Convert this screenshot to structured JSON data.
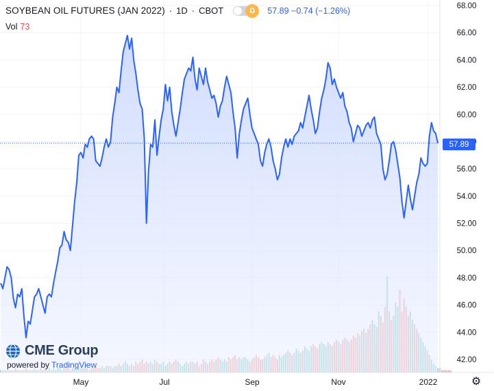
{
  "header": {
    "title": "SOYBEAN OIL FUTURES (JAN 2022)",
    "interval": "1D",
    "exchange": "CBOT",
    "separator": "·",
    "delay_badge": "D",
    "last_price": "57.89",
    "change": "−0.74",
    "change_pct": "(−1.26%)",
    "volume_label": "Vol",
    "volume_value": "73"
  },
  "price_badge": "57.89",
  "branding": {
    "logo_text": "CME Group",
    "powered_by": "powered by",
    "powered_brand": "TradingView"
  },
  "colors": {
    "line": "#2962ff",
    "area": "#dbe4ff",
    "vol_up": "#80cbc4",
    "vol_down": "#ef9a9a",
    "grid": "#f0f3fa"
  },
  "chart_data": {
    "type": "area",
    "title": "SOYBEAN OIL FUTURES (JAN 2022)",
    "x_ticks": [
      "May",
      "Jul",
      "Sep",
      "Nov",
      "2022"
    ],
    "y_ticks": [
      "68.00",
      "66.00",
      "64.00",
      "62.00",
      "60.00",
      "58.00",
      "56.00",
      "54.00",
      "52.00",
      "50.00",
      "48.00",
      "46.00",
      "44.00",
      "42.00"
    ],
    "ylim": [
      41.2,
      68.3
    ],
    "grid": true,
    "last_price": 57.89,
    "series": [
      {
        "values": [
          47.6,
          47.2,
          48.0,
          48.8,
          48.6,
          48.0,
          46.5,
          45.8,
          46.8,
          46.6,
          47.2,
          45.2,
          43.6,
          44.8,
          44.6,
          45.6,
          46.6,
          46.8,
          47.2,
          46.6,
          46.0,
          45.4,
          46.6,
          46.8,
          46.6,
          47.6,
          48.4,
          49.2,
          50.2,
          50.4,
          51.4,
          50.8,
          50.6,
          50.0,
          51.8,
          53.6,
          55.0,
          57.0,
          57.2,
          56.8,
          57.8,
          57.6,
          58.2,
          58.4,
          58.2,
          56.6,
          56.4,
          56.2,
          56.8,
          57.6,
          58.2,
          57.6,
          58.0,
          59.8,
          60.8,
          62.0,
          61.6,
          63.2,
          64.6,
          65.2,
          65.8,
          64.8,
          65.6,
          64.0,
          63.0,
          61.8,
          60.8,
          60.4,
          58.2,
          52.0,
          55.8,
          57.8,
          57.6,
          59.6,
          57.0,
          58.4,
          59.6,
          60.4,
          62.2,
          61.0,
          62.0,
          60.2,
          59.2,
          58.4,
          59.4,
          60.4,
          61.6,
          62.6,
          63.0,
          63.4,
          63.2,
          64.2,
          62.6,
          61.8,
          63.4,
          62.8,
          62.2,
          63.4,
          62.4,
          61.8,
          61.2,
          61.4,
          60.8,
          59.8,
          60.6,
          61.0,
          62.0,
          62.8,
          62.2,
          61.6,
          60.2,
          59.0,
          56.8,
          58.6,
          59.6,
          60.4,
          60.8,
          61.2,
          60.0,
          59.0,
          58.6,
          58.2,
          57.8,
          56.6,
          56.2,
          57.2,
          57.8,
          58.2,
          57.6,
          56.6,
          56.0,
          55.2,
          55.6,
          56.8,
          57.6,
          58.2,
          57.6,
          58.2,
          57.8,
          58.4,
          58.6,
          58.8,
          59.4,
          59.0,
          59.8,
          60.6,
          61.4,
          60.4,
          59.6,
          58.6,
          59.0,
          60.2,
          61.2,
          61.8,
          62.6,
          63.8,
          63.4,
          62.2,
          62.6,
          62.0,
          61.6,
          61.2,
          61.6,
          60.6,
          60.2,
          59.4,
          59.0,
          58.0,
          58.6,
          59.2,
          59.0,
          58.4,
          58.8,
          59.2,
          59.4,
          59.0,
          59.6,
          59.8,
          58.6,
          58.2,
          57.8,
          56.0,
          55.2,
          55.6,
          56.6,
          57.8,
          58.0,
          57.4,
          56.4,
          55.4,
          53.6,
          52.4,
          53.6,
          54.8,
          53.8,
          53.0,
          54.0,
          55.0,
          55.6,
          56.8,
          56.4,
          56.2,
          56.4,
          58.4,
          59.4,
          58.8,
          58.6,
          57.89
        ]
      }
    ],
    "volume": [
      1,
      1,
      1,
      1,
      1,
      1,
      1,
      2,
      1,
      1,
      1,
      1,
      2,
      1,
      1,
      1,
      2,
      1,
      1,
      2,
      1,
      2,
      1,
      2,
      1,
      2,
      1,
      2,
      2,
      1,
      2,
      2,
      2,
      1,
      2,
      2,
      1,
      2,
      2,
      2,
      2,
      2,
      1,
      2,
      2,
      3,
      2,
      2,
      3,
      2,
      3,
      3,
      3,
      2,
      3,
      3,
      4,
      3,
      4,
      5,
      4,
      3,
      4,
      3,
      5,
      4,
      5,
      6,
      4,
      5,
      4,
      5,
      4,
      6,
      5,
      4,
      4,
      5,
      3,
      4,
      5,
      4,
      5,
      6,
      5,
      4,
      3,
      4,
      5,
      4,
      5,
      5,
      4,
      5,
      3,
      4,
      6,
      5,
      4,
      5,
      6,
      5,
      6,
      7,
      6,
      5,
      6,
      5,
      7,
      6,
      7,
      8,
      6,
      7,
      6,
      7,
      7,
      6,
      5,
      6,
      7,
      8,
      7,
      6,
      6,
      7,
      8,
      9,
      7,
      8,
      7,
      6,
      8,
      7,
      8,
      9,
      10,
      9,
      8,
      9,
      11,
      10,
      9,
      10,
      12,
      11,
      10,
      12,
      13,
      12,
      11,
      13,
      14,
      13,
      12,
      14,
      13,
      12,
      14,
      15,
      14,
      13,
      15,
      16,
      15,
      14,
      15,
      17,
      16,
      18,
      17,
      19,
      20,
      18,
      20,
      22,
      24,
      22,
      21,
      28,
      26,
      23,
      30,
      44,
      28,
      24,
      26,
      32,
      30,
      38,
      28,
      34,
      30,
      26,
      28,
      24,
      22,
      20,
      18,
      16,
      14,
      12,
      10,
      8,
      6,
      4,
      3,
      2,
      2,
      1,
      1,
      1,
      1,
      1
    ],
    "volume_up": [
      1,
      0,
      1,
      1,
      0,
      1,
      0,
      0,
      1,
      0,
      1,
      0,
      0,
      1,
      0,
      1,
      1,
      0,
      1,
      1,
      0,
      0,
      1,
      1,
      0,
      1,
      1,
      1,
      1,
      1,
      1,
      0,
      0,
      0,
      1,
      1,
      1,
      1,
      1,
      0,
      1,
      0,
      1,
      1,
      0,
      0,
      0,
      0,
      1,
      1,
      1,
      0,
      1,
      1,
      1,
      1,
      0,
      1,
      1,
      1,
      1,
      0,
      1,
      0,
      0,
      0,
      0,
      0,
      0,
      0,
      1,
      1,
      0,
      1,
      0,
      1,
      1,
      1,
      1,
      0,
      1,
      0,
      0,
      0,
      1,
      1,
      1,
      1,
      1,
      1,
      0,
      1,
      0,
      0,
      1,
      0,
      0,
      1,
      0,
      0,
      0,
      1,
      0,
      0,
      1,
      1,
      1,
      1,
      0,
      0,
      0,
      0,
      0,
      1,
      1,
      1,
      1,
      1,
      0,
      0,
      0,
      0,
      0,
      0,
      0,
      1,
      1,
      1,
      0,
      0,
      0,
      0,
      1,
      1,
      1,
      1,
      0,
      1,
      0,
      1,
      1,
      1,
      1,
      0,
      1,
      1,
      1,
      1,
      0,
      0,
      0,
      1,
      1,
      1,
      1,
      1,
      0,
      1,
      0,
      0,
      1,
      0,
      0,
      0,
      1,
      0,
      0,
      0,
      0,
      0,
      1,
      1,
      0,
      1,
      0,
      0,
      1,
      1,
      0,
      1,
      0,
      0,
      0,
      1,
      0,
      0,
      1,
      1,
      1,
      0,
      0,
      0,
      0,
      0,
      1,
      1,
      0,
      0,
      1,
      1,
      1,
      1,
      0,
      1,
      1,
      1,
      1,
      1,
      0,
      1,
      0,
      0
    ]
  }
}
